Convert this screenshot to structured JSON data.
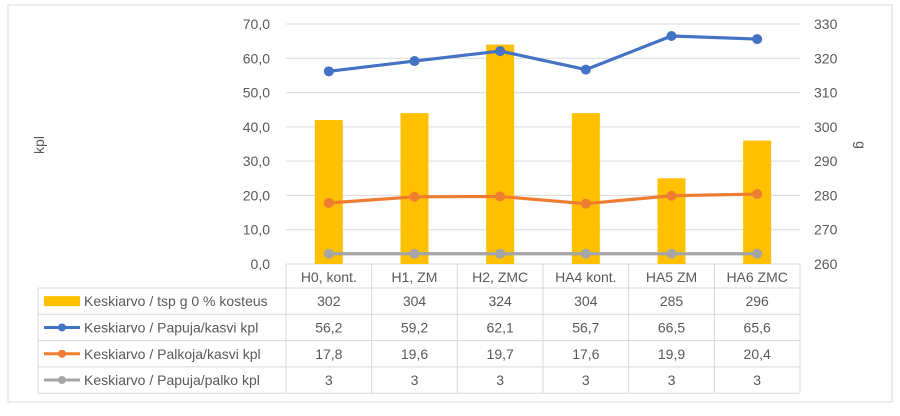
{
  "chart_data": {
    "type": "bar+line",
    "categories": [
      "H0, kont.",
      "H1, ZM",
      "H2, ZMC",
      "HA4 kont.",
      "HA5 ZM",
      "HA6 ZMC"
    ],
    "ylabel_left": "kpl",
    "ylabel_right": "g",
    "ylim_left": [
      0,
      70
    ],
    "ylim_right": [
      260,
      330
    ],
    "yticks_left": [
      "0,0",
      "10,0",
      "20,0",
      "30,0",
      "40,0",
      "50,0",
      "60,0",
      "70,0"
    ],
    "yticks_right": [
      "260",
      "270",
      "280",
      "290",
      "300",
      "310",
      "320",
      "330"
    ],
    "grid": true,
    "legend": "data-table",
    "series": [
      {
        "name": "Keskiarvo  / tsp g 0 % kosteus",
        "type": "bar",
        "axis": "right",
        "color": "#FFC000",
        "values": [
          302,
          304,
          324,
          304,
          285,
          296
        ],
        "labels": [
          "302",
          "304",
          "324",
          "304",
          "285",
          "296"
        ]
      },
      {
        "name": "Keskiarvo  / Papuja/kasvi kpl",
        "type": "line",
        "axis": "left",
        "color": "#4472C4",
        "values": [
          56.2,
          59.2,
          62.1,
          56.7,
          66.5,
          65.6
        ],
        "labels": [
          "56,2",
          "59,2",
          "62,1",
          "56,7",
          "66,5",
          "65,6"
        ]
      },
      {
        "name": "Keskiarvo  / Palkoja/kasvi kpl",
        "type": "line",
        "axis": "left",
        "color": "#ED7D31",
        "values": [
          17.8,
          19.6,
          19.7,
          17.6,
          19.9,
          20.4
        ],
        "labels": [
          "17,8",
          "19,6",
          "19,7",
          "17,6",
          "19,9",
          "20,4"
        ]
      },
      {
        "name": "Keskiarvo  / Papuja/palko kpl",
        "type": "line",
        "axis": "left",
        "color": "#A5A5A5",
        "values": [
          3,
          3,
          3,
          3,
          3,
          3
        ],
        "labels": [
          "3",
          "3",
          "3",
          "3",
          "3",
          "3"
        ]
      }
    ]
  }
}
